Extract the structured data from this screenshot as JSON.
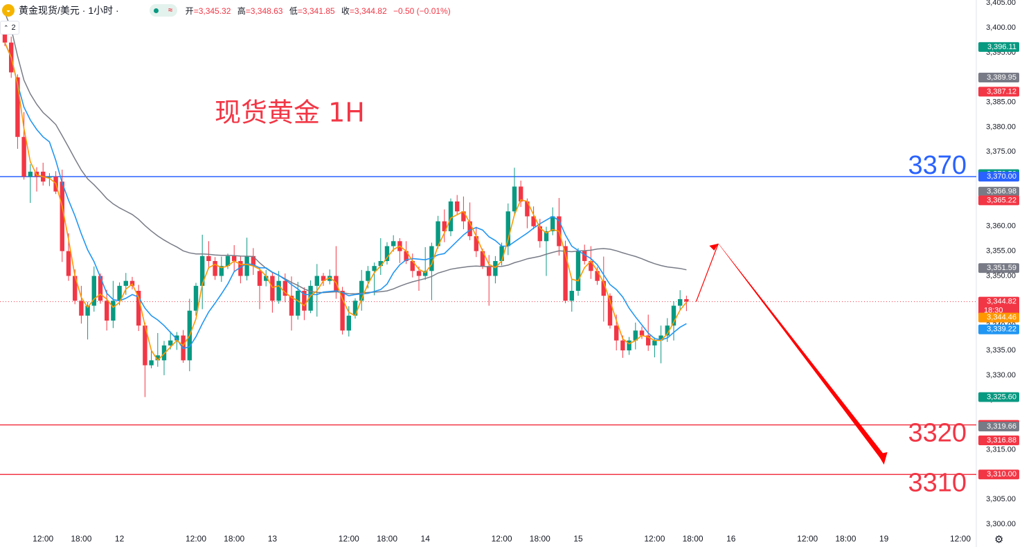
{
  "header": {
    "icon": "gold-coin-icon",
    "symbol": "黄金现货/美元 · 1小时 ·",
    "market_status": [
      "market-open-dot-icon",
      "wave-icon"
    ],
    "ohlc": [
      {
        "label": "开",
        "value": "=3,345.32"
      },
      {
        "label": "高",
        "value": "=3,348.63"
      },
      {
        "label": "低",
        "value": "=3,341.85"
      },
      {
        "label": "收",
        "value": "=3,344.82"
      }
    ],
    "change": "−0.50 (−0.01%)"
  },
  "indicator_toggle": {
    "count": "2"
  },
  "chart_data": {
    "type": "candlestick",
    "title": "现货黄金 1H",
    "ylim": [
      3300,
      3405
    ],
    "y_ticks": [
      "3,300.00",
      "3,305.00",
      "3,310.00",
      "3,315.00",
      "3,320.00",
      "3,325.00",
      "3,330.00",
      "3,335.00",
      "3,340.00",
      "3,345.00",
      "3,350.00",
      "3,355.00",
      "3,360.00",
      "3,365.00",
      "3,370.00",
      "3,375.00",
      "3,380.00",
      "3,385.00",
      "3,390.00",
      "3,395.00",
      "3,400.00",
      "3,405.00"
    ],
    "x_ticks": [
      {
        "i": 6,
        "label": "12:00"
      },
      {
        "i": 12,
        "label": "18:00"
      },
      {
        "i": 18,
        "label": "12"
      },
      {
        "i": 30,
        "label": "12:00"
      },
      {
        "i": 36,
        "label": "18:00"
      },
      {
        "i": 42,
        "label": "13"
      },
      {
        "i": 54,
        "label": "12:00"
      },
      {
        "i": 60,
        "label": "18:00"
      },
      {
        "i": 66,
        "label": "14"
      },
      {
        "i": 78,
        "label": "12:00"
      },
      {
        "i": 84,
        "label": "18:00"
      },
      {
        "i": 90,
        "label": "15"
      },
      {
        "i": 102,
        "label": "12:00"
      },
      {
        "i": 108,
        "label": "18:00"
      },
      {
        "i": 114,
        "label": "16"
      },
      {
        "i": 126,
        "label": "12:00"
      },
      {
        "i": 132,
        "label": "18:00"
      },
      {
        "i": 138,
        "label": "19"
      },
      {
        "i": 150,
        "label": "12:00"
      }
    ],
    "candles_oc": [
      [
        3399,
        3397
      ],
      [
        3397,
        3391
      ],
      [
        3390,
        3378
      ],
      [
        3378,
        3370
      ],
      [
        3370,
        3371
      ],
      [
        3371,
        3370
      ],
      [
        3371,
        3369
      ],
      [
        3370,
        3370
      ],
      [
        3370,
        3367
      ],
      [
        3369,
        3355
      ],
      [
        3355,
        3350
      ],
      [
        3350,
        3345
      ],
      [
        3345,
        3342
      ],
      [
        3342,
        3344
      ],
      [
        3344,
        3350
      ],
      [
        3350,
        3345
      ],
      [
        3345,
        3341
      ],
      [
        3341,
        3345
      ],
      [
        3345,
        3348
      ],
      [
        3348,
        3349
      ],
      [
        3349,
        3348
      ],
      [
        3347,
        3340
      ],
      [
        3340,
        3332
      ],
      [
        3332,
        3333
      ],
      [
        3333,
        3334
      ],
      [
        3333,
        3336
      ],
      [
        3336,
        3337
      ],
      [
        3337,
        3338
      ],
      [
        3338,
        3333
      ],
      [
        3333,
        3343
      ],
      [
        3343,
        3348
      ],
      [
        3348,
        3354
      ],
      [
        3354,
        3353
      ],
      [
        3353,
        3350
      ],
      [
        3350,
        3352
      ],
      [
        3352,
        3354
      ],
      [
        3354,
        3353
      ],
      [
        3353,
        3350
      ],
      [
        3350,
        3354
      ],
      [
        3354,
        3352
      ],
      [
        3351,
        3348
      ],
      [
        3349,
        3350
      ],
      [
        3350,
        3345
      ],
      [
        3345,
        3349
      ],
      [
        3349,
        3346
      ],
      [
        3346,
        3342
      ],
      [
        3342,
        3347
      ],
      [
        3347,
        3343
      ],
      [
        3343,
        3348
      ],
      [
        3348,
        3350
      ],
      [
        3350,
        3349
      ],
      [
        3349,
        3350
      ],
      [
        3350,
        3347
      ],
      [
        3347,
        3339
      ],
      [
        3339,
        3342
      ],
      [
        3342,
        3345
      ],
      [
        3345,
        3349
      ],
      [
        3349,
        3351
      ],
      [
        3351,
        3352
      ],
      [
        3352,
        3353
      ],
      [
        3353,
        3356
      ],
      [
        3356,
        3357
      ],
      [
        3357,
        3355
      ],
      [
        3355,
        3353
      ],
      [
        3353,
        3351
      ],
      [
        3351,
        3350
      ],
      [
        3350,
        3351
      ],
      [
        3351,
        3356
      ],
      [
        3356,
        3361
      ],
      [
        3361,
        3359
      ],
      [
        3359,
        3365
      ],
      [
        3365,
        3363
      ],
      [
        3363,
        3361
      ],
      [
        3361,
        3358
      ],
      [
        3358,
        3355
      ],
      [
        3355,
        3352
      ],
      [
        3352,
        3350
      ],
      [
        3350,
        3353
      ],
      [
        3353,
        3356
      ],
      [
        3356,
        3363
      ],
      [
        3363,
        3368
      ],
      [
        3368,
        3365
      ],
      [
        3365,
        3362
      ],
      [
        3362,
        3360
      ],
      [
        3360,
        3357
      ],
      [
        3357,
        3359
      ],
      [
        3359,
        3362
      ],
      [
        3362,
        3356
      ],
      [
        3356,
        3345
      ],
      [
        3345,
        3347
      ],
      [
        3347,
        3355
      ],
      [
        3355,
        3353
      ],
      [
        3353,
        3351
      ],
      [
        3351,
        3349
      ],
      [
        3349,
        3346
      ],
      [
        3346,
        3340
      ],
      [
        3340,
        3337
      ],
      [
        3337,
        3335
      ],
      [
        3335,
        3337
      ],
      [
        3337,
        3339
      ],
      [
        3339,
        3338
      ],
      [
        3338,
        3336
      ],
      [
        3336,
        3337
      ],
      [
        3337,
        3338
      ],
      [
        3338,
        3340
      ],
      [
        3340,
        3344
      ],
      [
        3344,
        3345.32
      ],
      [
        3345.32,
        3344.82
      ]
    ],
    "ma_fast_label": "3,344.46",
    "ma_mid_label": "3,339.22",
    "ma_slow_label": "3,351.59",
    "current_price": {
      "value": 3344.82,
      "label": "3,344.82",
      "countdown": "18:30"
    },
    "levels": [
      {
        "value": 3370,
        "label": "3370",
        "color": "#2962ff"
      },
      {
        "value": 3320,
        "label": "3320",
        "color": "#f23645"
      },
      {
        "value": 3310,
        "label": "3310",
        "color": "#f23645"
      }
    ],
    "price_tags": [
      {
        "value": 3396.11,
        "label": "3,396.11",
        "color": "#089981"
      },
      {
        "value": 3389.95,
        "label": "3,389.95",
        "color": "#787b86"
      },
      {
        "value": 3387.12,
        "label": "3,387.12",
        "color": "#f23645"
      },
      {
        "value": 3370.5,
        "label": "3,370.50",
        "color": "#089981"
      },
      {
        "value": 3370.0,
        "label": "3,370.00",
        "color": "#2962ff"
      },
      {
        "value": 3366.98,
        "label": "3,366.98",
        "color": "#787b86"
      },
      {
        "value": 3365.22,
        "label": "3,365.22",
        "color": "#f23645"
      },
      {
        "value": 3351.59,
        "label": "3,351.59",
        "color": "#787b86"
      },
      {
        "value": 3344.82,
        "label": "3,344.82",
        "color": "#f23645"
      },
      {
        "value": 3344.46,
        "label": "3,344.46",
        "color": "#ff9800"
      },
      {
        "value": 3339.22,
        "label": "3,339.22",
        "color": "#2196f3"
      },
      {
        "value": 3325.6,
        "label": "3,325.60",
        "color": "#089981"
      },
      {
        "value": 3320.0,
        "label": "3,320.00",
        "color": "#f23645"
      },
      {
        "value": 3319.66,
        "label": "3,319.66",
        "color": "#787b86"
      },
      {
        "value": 3316.88,
        "label": "3,316.88",
        "color": "#f23645"
      },
      {
        "value": 3310.0,
        "label": "3,310.00",
        "color": "#f23645"
      }
    ],
    "projection": [
      {
        "i": 112,
        "v": 3356.5
      },
      {
        "i": 138,
        "v": 3312
      }
    ],
    "colors": {
      "up": "#089981",
      "down": "#f23645",
      "ma_fast": "#ff9800",
      "ma_mid": "#2196f3",
      "ma_slow": "#787b86",
      "arrow": "#ff0000"
    }
  },
  "settings_icon": "gear-icon"
}
